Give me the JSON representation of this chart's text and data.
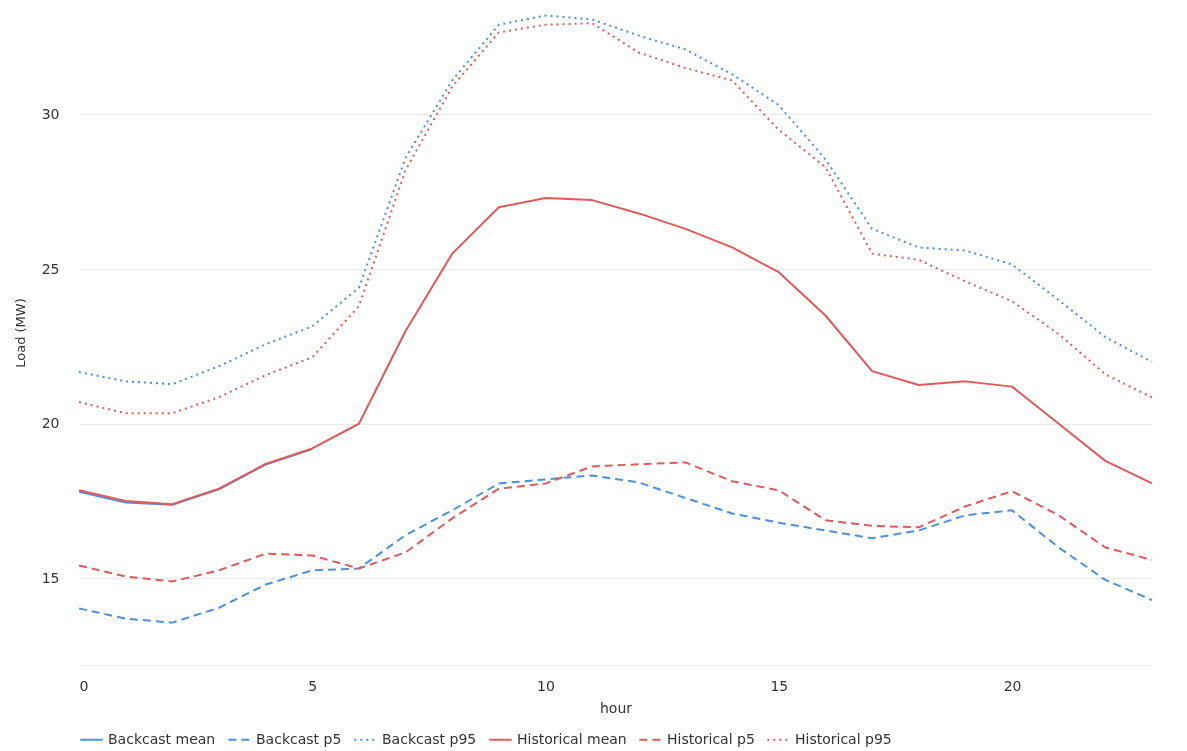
{
  "chart_data": {
    "type": "line",
    "xlabel": "hour",
    "ylabel": "Load (MW)",
    "x": [
      0,
      1,
      2,
      3,
      4,
      5,
      6,
      7,
      8,
      9,
      10,
      11,
      12,
      13,
      14,
      15,
      16,
      17,
      18,
      19,
      20,
      21,
      22,
      23
    ],
    "xlim": [
      0,
      23
    ],
    "xticks": [
      0,
      5,
      10,
      15,
      20
    ],
    "ylim": [
      12.2,
      33.7
    ],
    "yticks": [
      15,
      20,
      25,
      30
    ],
    "grid": "y",
    "legend": "bottom",
    "marker": "none",
    "series": [
      {
        "name": "Backcast mean",
        "color": "#4a90e2",
        "line_style": "solid",
        "values": [
          17.8,
          17.45,
          17.38,
          17.88,
          18.68,
          19.18,
          null,
          null,
          null,
          null,
          null,
          null,
          null,
          null,
          null,
          null,
          null,
          null,
          null,
          null,
          null,
          null,
          null,
          null
        ]
      },
      {
        "name": "Backcast p5",
        "color": "#4a90e2",
        "line_style": "dashed",
        "values": [
          14.03,
          13.7,
          13.57,
          14.05,
          14.8,
          15.26,
          15.32,
          16.4,
          17.2,
          18.07,
          18.2,
          18.33,
          18.1,
          17.6,
          17.1,
          16.8,
          16.55,
          16.3,
          16.55,
          17.04,
          17.2,
          16.0,
          14.95,
          14.3
        ]
      },
      {
        "name": "Backcast p95",
        "color": "#4a90e2",
        "line_style": "dotted",
        "values": [
          21.67,
          21.37,
          21.28,
          21.86,
          22.57,
          23.15,
          24.4,
          28.6,
          31.1,
          32.9,
          33.2,
          33.07,
          32.55,
          32.1,
          31.3,
          30.3,
          28.55,
          26.3,
          25.7,
          25.6,
          25.15,
          24.0,
          22.8,
          22.0
        ]
      },
      {
        "name": "Historical mean",
        "color": "#e05a5a",
        "line_style": "solid",
        "values": [
          17.85,
          17.5,
          17.4,
          17.9,
          18.7,
          19.2,
          20.0,
          23.0,
          25.5,
          27.0,
          27.3,
          27.23,
          26.8,
          26.3,
          25.7,
          24.9,
          23.5,
          21.7,
          21.25,
          21.37,
          21.2,
          20.0,
          18.8,
          18.07
        ]
      },
      {
        "name": "Historical p5",
        "color": "#e05a5a",
        "line_style": "dashed",
        "values": [
          15.42,
          15.06,
          14.9,
          15.26,
          15.8,
          15.74,
          15.32,
          15.84,
          16.94,
          17.9,
          18.07,
          18.62,
          18.69,
          18.75,
          18.14,
          17.85,
          16.88,
          16.7,
          16.65,
          17.33,
          17.82,
          17.04,
          16.0,
          15.6
        ]
      },
      {
        "name": "Historical p95",
        "color": "#e05a5a",
        "line_style": "dotted",
        "values": [
          20.7,
          20.34,
          20.34,
          20.86,
          21.57,
          22.15,
          23.8,
          28.2,
          30.9,
          32.65,
          32.9,
          32.95,
          32.0,
          31.5,
          31.1,
          29.5,
          28.3,
          25.5,
          25.3,
          24.6,
          23.96,
          22.9,
          21.6,
          20.85
        ]
      }
    ]
  }
}
